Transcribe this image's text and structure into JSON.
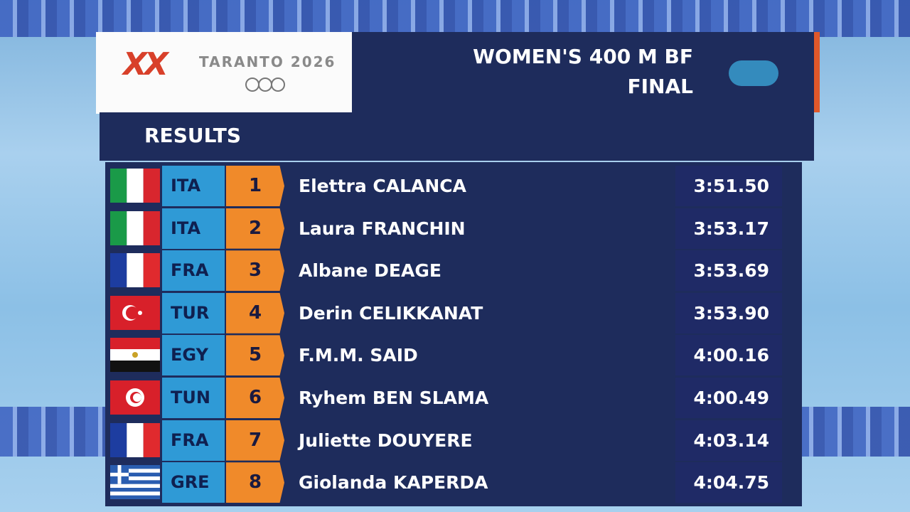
{
  "header": {
    "logo": "XX",
    "host": "TARANTO 2026",
    "title": "WOMEN'S 400 M BF",
    "phase": "FINAL",
    "section": "RESULTS"
  },
  "results": [
    {
      "code": "ITA",
      "rank": "1",
      "name": "Elettra CALANCA",
      "time": "3:51.50"
    },
    {
      "code": "ITA",
      "rank": "2",
      "name": "Laura FRANCHIN",
      "time": "3:53.17"
    },
    {
      "code": "FRA",
      "rank": "3",
      "name": "Albane DEAGE",
      "time": "3:53.69"
    },
    {
      "code": "TUR",
      "rank": "4",
      "name": "Derin CELIKKANAT",
      "time": "3:53.90"
    },
    {
      "code": "EGY",
      "rank": "5",
      "name": "F.M.M. SAID",
      "time": "4:00.16"
    },
    {
      "code": "TUN",
      "rank": "6",
      "name": "Ryhem BEN SLAMA",
      "time": "4:00.49"
    },
    {
      "code": "FRA",
      "rank": "7",
      "name": "Juliette DOUYERE",
      "time": "4:03.14"
    },
    {
      "code": "GRE",
      "rank": "8",
      "name": "Giolanda KAPERDA",
      "time": "4:04.75"
    }
  ]
}
